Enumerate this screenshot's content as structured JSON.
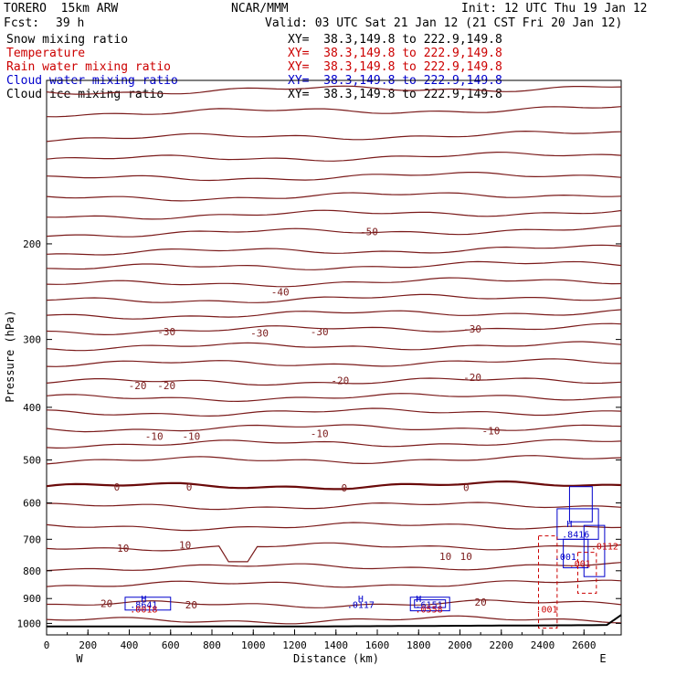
{
  "header": {
    "model": "TORERO  15km ARW",
    "org": "NCAR/MMM",
    "init": "Init: 12 UTC Thu 19 Jan 12",
    "fcst_label": "Fcst:",
    "fcst_value": "39 h",
    "valid": "Valid: 03 UTC Sat 21 Jan 12 (21 CST Fri 20 Jan 12)"
  },
  "fields": [
    {
      "name": "Snow mixing ratio",
      "xy": "XY=  38.3,149.8 to 222.9,149.8",
      "color": "#000000"
    },
    {
      "name": "Temperature",
      "xy": "XY=  38.3,149.8 to 222.9,149.8",
      "color": "#cc0000"
    },
    {
      "name": "Rain water mixing ratio",
      "xy": "XY=  38.3,149.8 to 222.9,149.8",
      "color": "#cc0000"
    },
    {
      "name": "Cloud water mixing ratio",
      "xy": "XY=  38.3,149.8 to 222.9,149.8",
      "color": "#0000cc"
    },
    {
      "name": "Cloud ice mixing ratio",
      "xy": "XY=  38.3,149.8 to 222.9,149.8",
      "color": "#000000"
    }
  ],
  "chart_data": {
    "type": "line",
    "title": "",
    "xlabel": "Distance (km)",
    "ylabel": "Pressure (hPa)",
    "xlim": [
      0,
      2780
    ],
    "ylim": [
      1050,
      100
    ],
    "y_scale": "log",
    "x_ticks": [
      0,
      200,
      400,
      600,
      800,
      1000,
      1200,
      1400,
      1600,
      1800,
      2000,
      2200,
      2400,
      2600
    ],
    "y_ticks": [
      200,
      300,
      400,
      500,
      600,
      700,
      800,
      900,
      1000
    ],
    "x_end_labels": {
      "left": "W",
      "right": "E"
    },
    "isotherm_levels_hpa": [
      105,
      115,
      128,
      140,
      152,
      165,
      178,
      192,
      208,
      222,
      238,
      255,
      272,
      290,
      310,
      333,
      360,
      385,
      410,
      438,
      468,
      502,
      560,
      610,
      665,
      725,
      790,
      850,
      925,
      990
    ],
    "zero_isotherm_hpa": 560,
    "temperature_labels": [
      {
        "text": "-50",
        "x": 1560,
        "p": 190
      },
      {
        "text": "-40",
        "x": 1130,
        "p": 245
      },
      {
        "text": "-30",
        "x": 580,
        "p": 290
      },
      {
        "text": "-30",
        "x": 1030,
        "p": 292
      },
      {
        "text": "-30",
        "x": 1320,
        "p": 290
      },
      {
        "text": "-30",
        "x": 2060,
        "p": 287
      },
      {
        "text": "-20",
        "x": 440,
        "p": 365
      },
      {
        "text": "-20",
        "x": 580,
        "p": 365
      },
      {
        "text": "-20",
        "x": 1420,
        "p": 357
      },
      {
        "text": "-20",
        "x": 2060,
        "p": 352
      },
      {
        "text": "-10",
        "x": 520,
        "p": 452
      },
      {
        "text": "-10",
        "x": 700,
        "p": 452
      },
      {
        "text": "-10",
        "x": 1320,
        "p": 447
      },
      {
        "text": "-10",
        "x": 2150,
        "p": 442
      },
      {
        "text": "0",
        "x": 340,
        "p": 561
      },
      {
        "text": "0",
        "x": 690,
        "p": 561
      },
      {
        "text": "0",
        "x": 1440,
        "p": 563
      },
      {
        "text": "0",
        "x": 2030,
        "p": 562
      },
      {
        "text": "10",
        "x": 370,
        "p": 727
      },
      {
        "text": "10",
        "x": 670,
        "p": 717
      },
      {
        "text": "10",
        "x": 1930,
        "p": 753
      },
      {
        "text": "10",
        "x": 2030,
        "p": 753
      },
      {
        "text": "20",
        "x": 290,
        "p": 918
      },
      {
        "text": "20",
        "x": 700,
        "p": 924
      },
      {
        "text": "20",
        "x": 2100,
        "p": 913
      }
    ],
    "cloud_labels": [
      {
        "text": "H",
        "x": 470,
        "p": 899,
        "color": "#0000cc"
      },
      {
        "text": ".8641",
        "x": 470,
        "p": 922,
        "color": "#0000cc"
      },
      {
        "text": ".0018",
        "x": 470,
        "p": 940,
        "color": "#cc0000"
      },
      {
        "text": "H",
        "x": 1520,
        "p": 899,
        "color": "#0000cc"
      },
      {
        "text": ".0117",
        "x": 1520,
        "p": 922,
        "color": "#0000cc"
      },
      {
        "text": "H",
        "x": 1800,
        "p": 899,
        "color": "#0000cc"
      },
      {
        "text": ".6151",
        "x": 1850,
        "p": 922,
        "color": "#0000cc"
      },
      {
        "text": ".0558",
        "x": 1850,
        "p": 940,
        "color": "#cc0000"
      },
      {
        "text": "H",
        "x": 2530,
        "p": 655,
        "color": "#0000cc"
      },
      {
        "text": ".8416",
        "x": 2560,
        "p": 685,
        "color": "#0000cc"
      },
      {
        "text": ".0112",
        "x": 2700,
        "p": 720,
        "color": "#cc0000"
      },
      {
        "text": ".001",
        "x": 2510,
        "p": 753,
        "color": "#0000cc"
      },
      {
        "text": ".001",
        "x": 2580,
        "p": 775,
        "color": "#cc0000"
      },
      {
        "text": ".001",
        "x": 2420,
        "p": 940,
        "color": "#cc0000"
      }
    ],
    "grid": false
  },
  "colors": {
    "isotherm": "#7a1a1a",
    "zero_isotherm": "#6a0a0a",
    "cloud_water": "#0000cc",
    "rain_water": "#cc0000",
    "terrain": "#000000"
  }
}
